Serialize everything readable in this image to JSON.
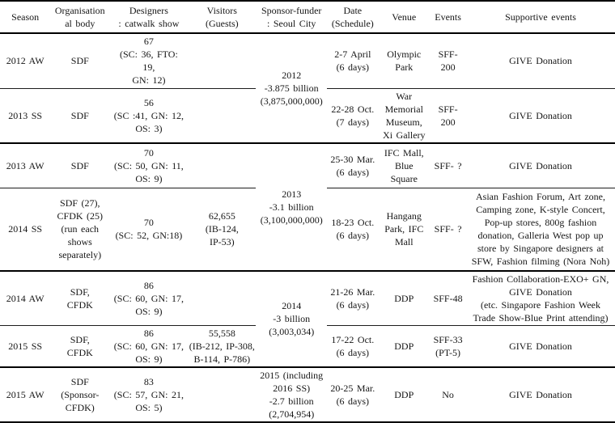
{
  "table": {
    "title": "Seoul Fashion Week seasons overview table",
    "columns": [
      {
        "id": "season",
        "label": "Season"
      },
      {
        "id": "organisational-body",
        "label": "Organisation\nal body"
      },
      {
        "id": "designers",
        "label": "Designers\n: catwalk show"
      },
      {
        "id": "visitors",
        "label": "Visitors\n(Guests)"
      },
      {
        "id": "sponsor-funder",
        "label": "Sponsor-funder\n: Seoul City"
      },
      {
        "id": "date",
        "label": "Date\n(Schedule)"
      },
      {
        "id": "venue",
        "label": "Venue"
      },
      {
        "id": "events",
        "label": "Events"
      },
      {
        "id": "supportive-events",
        "label": "Supportive events"
      }
    ],
    "rows": [
      {
        "group_end": false,
        "cells": [
          {
            "col": "season",
            "text": "2012 AW"
          },
          {
            "col": "organisational-body",
            "text": "SDF"
          },
          {
            "col": "designers",
            "text": "67\n(SC: 36, FTO:\n19,\nGN: 12)"
          },
          {
            "col": "visitors",
            "text": ""
          },
          {
            "col": "sponsor-funder",
            "text": "2012\n-3.875 billion\n(3,875,000,000)",
            "rowspan": 2
          },
          {
            "col": "date",
            "text": "2-7 April\n(6 days)"
          },
          {
            "col": "venue",
            "text": "Olympic\nPark"
          },
          {
            "col": "events",
            "text": "SFF-\n200"
          },
          {
            "col": "supportive-events",
            "text": "GIVE Donation"
          }
        ]
      },
      {
        "group_end": true,
        "cells": [
          {
            "col": "season",
            "text": "2013 SS"
          },
          {
            "col": "organisational-body",
            "text": "SDF"
          },
          {
            "col": "designers",
            "text": "56\n(SC :41, GN: 12,\nOS: 3)"
          },
          {
            "col": "visitors",
            "text": ""
          },
          {
            "col": "date",
            "text": "22-28 Oct.\n(7 days)"
          },
          {
            "col": "venue",
            "text": "War\nMemorial\nMuseum,\nXi Gallery"
          },
          {
            "col": "events",
            "text": "SFF-\n200"
          },
          {
            "col": "supportive-events",
            "text": "GIVE Donation"
          }
        ]
      },
      {
        "group_end": false,
        "cells": [
          {
            "col": "season",
            "text": "2013 AW"
          },
          {
            "col": "organisational-body",
            "text": "SDF"
          },
          {
            "col": "designers",
            "text": "70\n(SC: 50, GN: 11,\nOS: 9)"
          },
          {
            "col": "visitors",
            "text": ""
          },
          {
            "col": "sponsor-funder",
            "text": "2013\n-3.1 billion\n(3,100,000,000)",
            "rowspan": 2
          },
          {
            "col": "date",
            "text": "25-30 Mar.\n(6 days)"
          },
          {
            "col": "venue",
            "text": "IFC Mall,\nBlue\nSquare"
          },
          {
            "col": "events",
            "text": "SFF- ?"
          },
          {
            "col": "supportive-events",
            "text": "GIVE Donation"
          }
        ]
      },
      {
        "group_end": true,
        "cells": [
          {
            "col": "season",
            "text": "2014 SS"
          },
          {
            "col": "organisational-body",
            "text": "SDF (27),\nCFDK (25)\n(run each\nshows\nseparately)"
          },
          {
            "col": "designers",
            "text": "70\n(SC: 52, GN:18)"
          },
          {
            "col": "visitors",
            "text": "62,655\n(IB-124,\nIP-53)"
          },
          {
            "col": "date",
            "text": "18-23 Oct.\n(6 days)"
          },
          {
            "col": "venue",
            "text": "Hangang\nPark, IFC\nMall"
          },
          {
            "col": "events",
            "text": "SFF- ?"
          },
          {
            "col": "supportive-events",
            "text": "Asian Fashion Forum, Art zone,\nCamping zone, K-style Concert,\nPop-up stores, 800g fashion\ndonation, Galleria West pop up\nstore by Singapore designers at\nSFW, Fashion filming (Nora Noh)"
          }
        ]
      },
      {
        "group_end": false,
        "cells": [
          {
            "col": "season",
            "text": "2014 AW"
          },
          {
            "col": "organisational-body",
            "text": "SDF,\nCFDK"
          },
          {
            "col": "designers",
            "text": "86\n(SC: 60, GN: 17,\nOS: 9)"
          },
          {
            "col": "visitors",
            "text": ""
          },
          {
            "col": "sponsor-funder",
            "text": "2014\n-3 billion\n(3,003,034)",
            "rowspan": 2
          },
          {
            "col": "date",
            "text": "21-26 Mar.\n(6 days)"
          },
          {
            "col": "venue",
            "text": "DDP"
          },
          {
            "col": "events",
            "text": "SFF-48"
          },
          {
            "col": "supportive-events",
            "text": "Fashion Collaboration-EXO+ GN,\nGIVE Donation\n(etc. Singapore Fashion Week\nTrade Show-Blue Print attending)"
          }
        ]
      },
      {
        "group_end": true,
        "cells": [
          {
            "col": "season",
            "text": "2015 SS"
          },
          {
            "col": "organisational-body",
            "text": "SDF,\nCFDK"
          },
          {
            "col": "designers",
            "text": "86\n(SC: 60, GN: 17,\nOS: 9)"
          },
          {
            "col": "visitors",
            "text": "55,558\n(IB-212, IP-308,\nB-114, P-786)"
          },
          {
            "col": "date",
            "text": "17-22 Oct.\n(6 days)"
          },
          {
            "col": "venue",
            "text": "DDP"
          },
          {
            "col": "events",
            "text": "SFF-33\n(PT-5)"
          },
          {
            "col": "supportive-events",
            "text": "GIVE Donation"
          }
        ]
      },
      {
        "group_end": false,
        "cells": [
          {
            "col": "season",
            "text": "2015 AW"
          },
          {
            "col": "organisational-body",
            "text": "SDF\n(Sponsor-\nCFDK)"
          },
          {
            "col": "designers",
            "text": "83\n(SC: 57, GN: 21,\nOS: 5)"
          },
          {
            "col": "visitors",
            "text": ""
          },
          {
            "col": "sponsor-funder",
            "text": "2015 (including\n2016 SS)\n-2.7 billion\n(2,704,954)"
          },
          {
            "col": "date",
            "text": "20-25 Mar.\n(6 days)"
          },
          {
            "col": "venue",
            "text": "DDP"
          },
          {
            "col": "events",
            "text": "No"
          },
          {
            "col": "supportive-events",
            "text": "GIVE Donation"
          }
        ]
      }
    ]
  }
}
